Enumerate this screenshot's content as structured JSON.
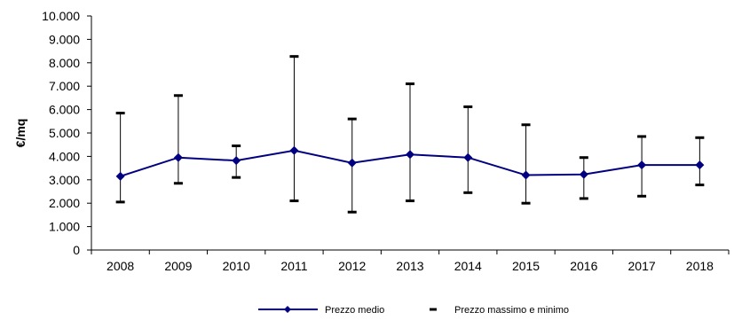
{
  "chart_data": {
    "type": "line",
    "title": "",
    "xlabel": "",
    "ylabel": "€/mq",
    "ylim": [
      0,
      10000
    ],
    "yticks": [
      "0",
      "1.000",
      "2.000",
      "3.000",
      "4.000",
      "5.000",
      "6.000",
      "7.000",
      "8.000",
      "9.000",
      "10.000"
    ],
    "categories": [
      "2008",
      "2009",
      "2010",
      "2011",
      "2012",
      "2013",
      "2014",
      "2015",
      "2016",
      "2017",
      "2018"
    ],
    "series": [
      {
        "name": "Prezzo medio",
        "values": [
          3150,
          3950,
          3820,
          4250,
          3720,
          4080,
          3950,
          3200,
          3230,
          3630,
          3630
        ]
      },
      {
        "name": "Prezzo massimo e minimo",
        "max": [
          5850,
          6600,
          4450,
          8270,
          5600,
          7100,
          6120,
          5350,
          3950,
          4850,
          4800
        ],
        "min": [
          2050,
          2850,
          3100,
          2100,
          1620,
          2100,
          2450,
          2000,
          2200,
          2300,
          2780
        ]
      }
    ],
    "grid": false,
    "legend_position": "bottom",
    "colors": {
      "line": "#000080",
      "whisker": "#000000",
      "axis": "#000000"
    }
  }
}
